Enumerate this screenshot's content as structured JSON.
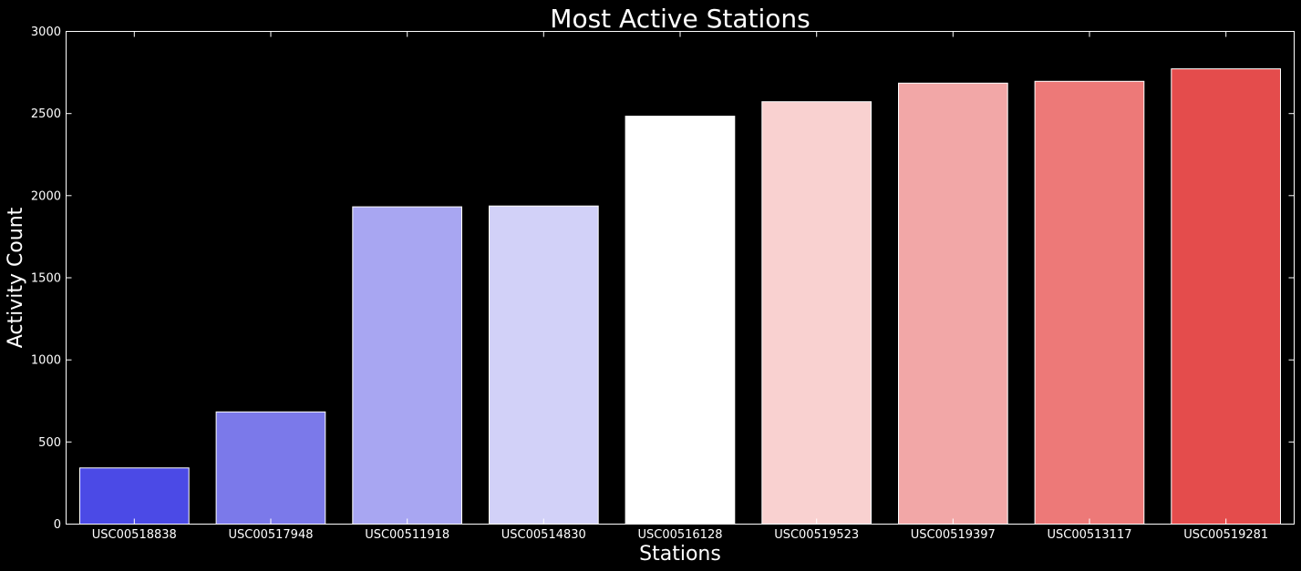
{
  "chart_data": {
    "type": "bar",
    "title": "Most Active Stations",
    "xlabel": "Stations",
    "ylabel": "Activity Count",
    "categories": [
      "USC00518838",
      "USC00517948",
      "USC00511918",
      "USC00514830",
      "USC00516128",
      "USC00519523",
      "USC00519397",
      "USC00513117",
      "USC00519281"
    ],
    "values": [
      342,
      683,
      1932,
      1937,
      2484,
      2572,
      2685,
      2696,
      2772
    ],
    "colors": [
      "#4b4ae6",
      "#7b79ea",
      "#a8a6f2",
      "#d2d1f8",
      "#ffffff",
      "#f9d1d0",
      "#f2a7a7",
      "#ed7978",
      "#e44c4c"
    ],
    "ylim": [
      0,
      3000
    ],
    "yticks": [
      0,
      500,
      1000,
      1500,
      2000,
      2500,
      3000
    ],
    "grid": false,
    "legend": "none",
    "background": "#000000",
    "foreground": "#ffffff"
  }
}
